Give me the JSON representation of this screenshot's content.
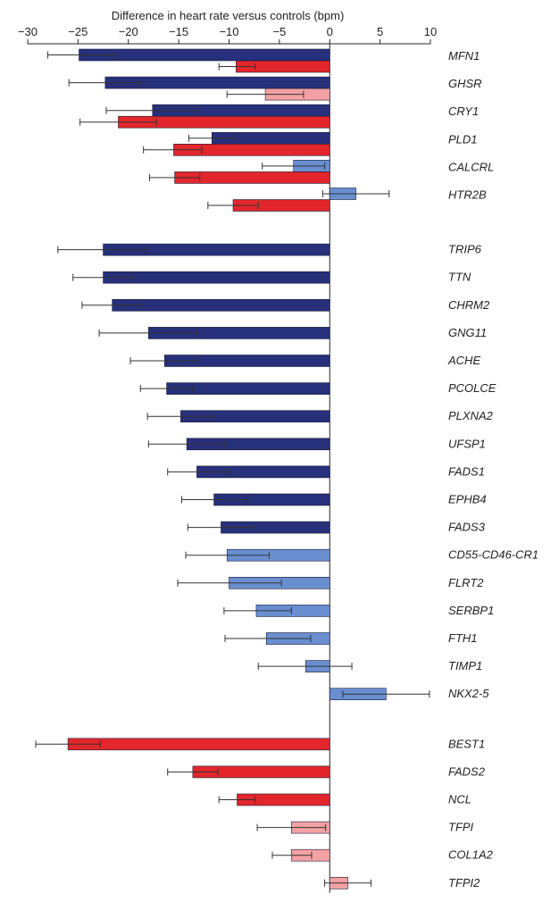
{
  "chart_data": {
    "type": "bar",
    "orientation": "horizontal",
    "xlabel": "Difference in heart rate versus controls (bpm)",
    "xlim": [
      -30,
      10
    ],
    "xticks": [
      -30,
      -25,
      -20,
      -15,
      -10,
      -5,
      0,
      5,
      10
    ],
    "grid": false,
    "legend": "none",
    "colors": {
      "dark_blue": "#27307a",
      "light_blue": "#6a8fd0",
      "red": "#e3262b",
      "pink": "#f4a1a3"
    },
    "groups": [
      {
        "rows": [
          {
            "gene": "MFN1",
            "bars": [
              {
                "value": -24.9,
                "lower": -28.0,
                "upper": -21.3,
                "color": "dark_blue"
              },
              {
                "value": -9.3,
                "lower": -11.0,
                "upper": -7.4,
                "color": "red"
              }
            ]
          },
          {
            "gene": "GHSR",
            "bars": [
              {
                "value": -22.3,
                "lower": -25.9,
                "upper": -18.7,
                "color": "dark_blue"
              },
              {
                "value": -6.4,
                "lower": -10.2,
                "upper": -2.6,
                "color": "pink"
              }
            ]
          },
          {
            "gene": "CRY1",
            "bars": [
              {
                "value": -17.6,
                "lower": -22.2,
                "upper": -13.0,
                "color": "dark_blue"
              },
              {
                "value": -21.0,
                "lower": -24.8,
                "upper": -17.2,
                "color": "red"
              }
            ]
          },
          {
            "gene": "PLD1",
            "bars": [
              {
                "value": -11.7,
                "lower": -14.0,
                "upper": -9.4,
                "color": "dark_blue"
              },
              {
                "value": -15.5,
                "lower": -18.5,
                "upper": -12.7,
                "color": "red"
              }
            ]
          },
          {
            "gene": "CALCRL",
            "bars": [
              {
                "value": -3.6,
                "lower": -6.7,
                "upper": -0.5,
                "color": "light_blue"
              },
              {
                "value": -15.4,
                "lower": -17.9,
                "upper": -12.9,
                "color": "red"
              }
            ]
          },
          {
            "gene": "HTR2B",
            "bars": [
              {
                "value": 2.6,
                "lower": -0.7,
                "upper": 5.9,
                "color": "light_blue"
              },
              {
                "value": -9.6,
                "lower": -12.1,
                "upper": -7.1,
                "color": "red"
              }
            ]
          }
        ]
      },
      {
        "rows": [
          {
            "gene": "TRIP6",
            "bars": [
              {
                "value": -22.5,
                "lower": -27.0,
                "upper": -18.2,
                "color": "dark_blue"
              }
            ]
          },
          {
            "gene": "TTN",
            "bars": [
              {
                "value": -22.5,
                "lower": -25.5,
                "upper": -19.6,
                "color": "dark_blue"
              }
            ]
          },
          {
            "gene": "CHRM2",
            "bars": [
              {
                "value": -21.6,
                "lower": -24.6,
                "upper": -18.6,
                "color": "dark_blue"
              }
            ]
          },
          {
            "gene": "GNG11",
            "bars": [
              {
                "value": -18.0,
                "lower": -22.9,
                "upper": -13.2,
                "color": "dark_blue"
              }
            ]
          },
          {
            "gene": "ACHE",
            "bars": [
              {
                "value": -16.4,
                "lower": -19.8,
                "upper": -13.2,
                "color": "dark_blue"
              }
            ]
          },
          {
            "gene": "PCOLCE",
            "bars": [
              {
                "value": -16.2,
                "lower": -18.8,
                "upper": -13.6,
                "color": "dark_blue"
              }
            ]
          },
          {
            "gene": "PLXNA2",
            "bars": [
              {
                "value": -14.8,
                "lower": -18.1,
                "upper": -11.6,
                "color": "dark_blue"
              }
            ]
          },
          {
            "gene": "UFSP1",
            "bars": [
              {
                "value": -14.2,
                "lower": -18.0,
                "upper": -10.4,
                "color": "dark_blue"
              }
            ]
          },
          {
            "gene": "FADS1",
            "bars": [
              {
                "value": -13.2,
                "lower": -16.1,
                "upper": -10.1,
                "color": "dark_blue"
              }
            ]
          },
          {
            "gene": "EPHB4",
            "bars": [
              {
                "value": -11.5,
                "lower": -14.7,
                "upper": -8.2,
                "color": "dark_blue"
              }
            ]
          },
          {
            "gene": "FADS3",
            "bars": [
              {
                "value": -10.8,
                "lower": -14.1,
                "upper": -7.5,
                "color": "dark_blue"
              }
            ]
          },
          {
            "gene": "CD55-CD46-CR1",
            "bars": [
              {
                "value": -10.2,
                "lower": -14.3,
                "upper": -6.0,
                "color": "light_blue"
              }
            ]
          },
          {
            "gene": "FLRT2",
            "bars": [
              {
                "value": -10.0,
                "lower": -15.1,
                "upper": -4.8,
                "color": "light_blue"
              }
            ]
          },
          {
            "gene": "SERBP1",
            "bars": [
              {
                "value": -7.3,
                "lower": -10.5,
                "upper": -3.8,
                "color": "light_blue"
              }
            ]
          },
          {
            "gene": "FTH1",
            "bars": [
              {
                "value": -6.3,
                "lower": -10.4,
                "upper": -1.9,
                "color": "light_blue"
              }
            ]
          },
          {
            "gene": "TIMP1",
            "bars": [
              {
                "value": -2.4,
                "lower": -7.1,
                "upper": 2.2,
                "color": "light_blue"
              }
            ]
          },
          {
            "gene": "NKX2-5",
            "bars": [
              {
                "value": 5.6,
                "lower": 1.3,
                "upper": 9.9,
                "color": "light_blue"
              }
            ]
          }
        ]
      },
      {
        "rows": [
          {
            "gene": "BEST1",
            "bars": [
              {
                "value": -26.0,
                "lower": -29.2,
                "upper": -22.8,
                "color": "red"
              }
            ]
          },
          {
            "gene": "FADS2",
            "bars": [
              {
                "value": -13.6,
                "lower": -16.1,
                "upper": -11.1,
                "color": "red"
              }
            ]
          },
          {
            "gene": "NCL",
            "bars": [
              {
                "value": -9.2,
                "lower": -11.0,
                "upper": -7.4,
                "color": "red"
              }
            ]
          },
          {
            "gene": "TFPI",
            "bars": [
              {
                "value": -3.8,
                "lower": -7.2,
                "upper": -0.4,
                "color": "pink"
              }
            ]
          },
          {
            "gene": "COL1A2",
            "bars": [
              {
                "value": -3.8,
                "lower": -5.7,
                "upper": -1.8,
                "color": "pink"
              }
            ]
          },
          {
            "gene": "TFPI2",
            "bars": [
              {
                "value": 1.8,
                "lower": -0.5,
                "upper": 4.1,
                "color": "pink"
              }
            ]
          }
        ]
      }
    ]
  }
}
